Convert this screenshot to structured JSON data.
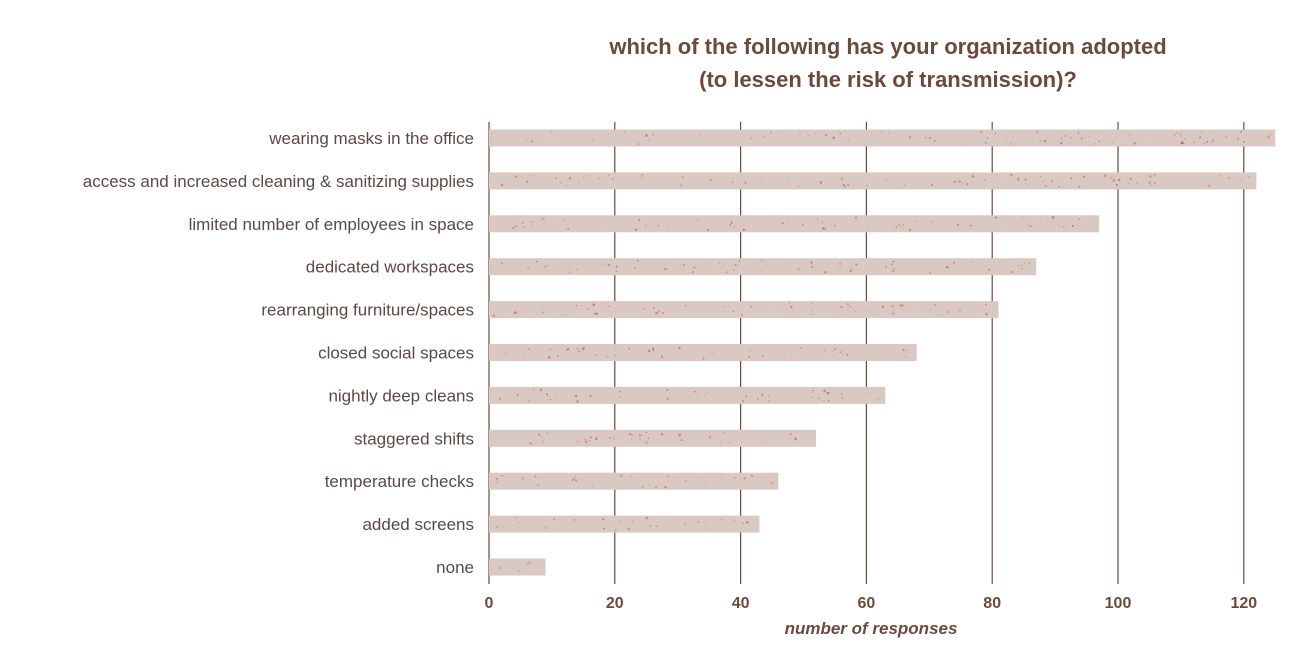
{
  "chart_data": {
    "type": "bar",
    "orientation": "horizontal",
    "title_lines": [
      "which of the following has your organization adopted",
      "(to lessen the risk of transmission)?"
    ],
    "xlabel": "number of responses",
    "ylabel": "",
    "xlim": [
      0,
      125
    ],
    "xticks": [
      0,
      20,
      40,
      60,
      80,
      100,
      120
    ],
    "grid": "vertical",
    "categories": [
      "wearing masks in the office",
      "access and increased cleaning & sanitizing supplies",
      "limited number of employees in space",
      "dedicated workspaces",
      "rearranging furniture/spaces",
      "closed social spaces",
      "nightly deep cleans",
      "staggered shifts",
      "temperature checks",
      "added screens",
      "none"
    ],
    "values": [
      125,
      122,
      97,
      87,
      81,
      68,
      63,
      52,
      46,
      43,
      9
    ]
  },
  "colors": {
    "bar": "#d9c9c2",
    "speckle": "#b5614a",
    "grid": "#6b4a3e",
    "title": "#6b4a3e",
    "label": "#5a4a44"
  }
}
